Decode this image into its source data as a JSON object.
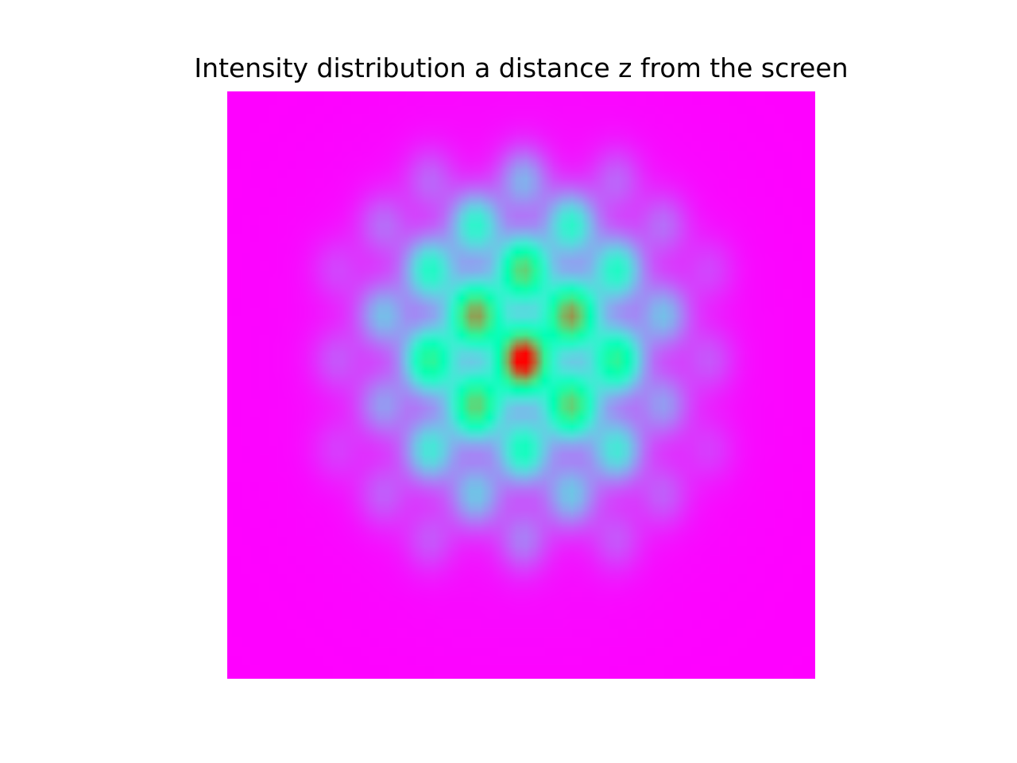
{
  "chart_data": {
    "type": "heatmap",
    "title": "Intensity distribution a distance z from the screen",
    "xlabel": "",
    "ylabel": "",
    "colormap": "rainbow",
    "axes_visible": false,
    "grid": false,
    "legend": "none",
    "grid_resolution": [
      64,
      64
    ],
    "colors": {
      "low": "#8000ff",
      "blue": "#1996f3",
      "cyan": "#4cf2ce",
      "green": "#b2f296",
      "yellow": "#ffb360",
      "high": "#ff0000"
    },
    "peaks": [
      {
        "x": 0.0,
        "y": 0.0,
        "value": 1.0
      },
      {
        "x": -0.162,
        "y": -0.153,
        "value": 0.75
      },
      {
        "x": 0.162,
        "y": -0.153,
        "value": 0.75
      },
      {
        "x": -0.162,
        "y": 0.153,
        "value": 0.65
      },
      {
        "x": 0.162,
        "y": 0.153,
        "value": 0.65
      },
      {
        "x": 0.0,
        "y": -0.306,
        "value": 0.65
      },
      {
        "x": -0.318,
        "y": 0.0,
        "value": 0.55
      },
      {
        "x": 0.318,
        "y": 0.0,
        "value": 0.55
      },
      {
        "x": 0.0,
        "y": 0.306,
        "value": 0.42
      },
      {
        "x": -0.318,
        "y": -0.306,
        "value": 0.4
      },
      {
        "x": 0.318,
        "y": -0.306,
        "value": 0.4
      },
      {
        "x": -0.162,
        "y": -0.459,
        "value": 0.38
      },
      {
        "x": 0.162,
        "y": -0.459,
        "value": 0.38
      },
      {
        "x": -0.318,
        "y": 0.306,
        "value": 0.33
      },
      {
        "x": 0.318,
        "y": 0.306,
        "value": 0.33
      },
      {
        "x": -0.162,
        "y": 0.459,
        "value": 0.25
      },
      {
        "x": 0.162,
        "y": 0.459,
        "value": 0.25
      },
      {
        "x": -0.478,
        "y": -0.153,
        "value": 0.24
      },
      {
        "x": 0.478,
        "y": -0.153,
        "value": 0.24
      },
      {
        "x": 0.0,
        "y": -0.612,
        "value": 0.22
      },
      {
        "x": -0.478,
        "y": 0.153,
        "value": 0.18
      },
      {
        "x": 0.478,
        "y": 0.153,
        "value": 0.18
      },
      {
        "x": 0.0,
        "y": 0.612,
        "value": 0.14
      },
      {
        "x": -0.478,
        "y": -0.459,
        "value": 0.12
      },
      {
        "x": 0.478,
        "y": -0.459,
        "value": 0.12
      },
      {
        "x": -0.318,
        "y": -0.612,
        "value": 0.11
      },
      {
        "x": 0.318,
        "y": -0.612,
        "value": 0.11
      },
      {
        "x": -0.478,
        "y": 0.459,
        "value": 0.1
      },
      {
        "x": 0.478,
        "y": 0.459,
        "value": 0.1
      },
      {
        "x": -0.318,
        "y": 0.612,
        "value": 0.09
      },
      {
        "x": 0.318,
        "y": 0.612,
        "value": 0.09
      },
      {
        "x": -0.635,
        "y": 0.0,
        "value": 0.09
      },
      {
        "x": 0.635,
        "y": 0.0,
        "value": 0.09
      },
      {
        "x": -0.635,
        "y": -0.306,
        "value": 0.07
      },
      {
        "x": 0.635,
        "y": -0.306,
        "value": 0.07
      },
      {
        "x": -0.635,
        "y": 0.306,
        "value": 0.06
      },
      {
        "x": 0.635,
        "y": 0.306,
        "value": 0.06
      }
    ]
  }
}
